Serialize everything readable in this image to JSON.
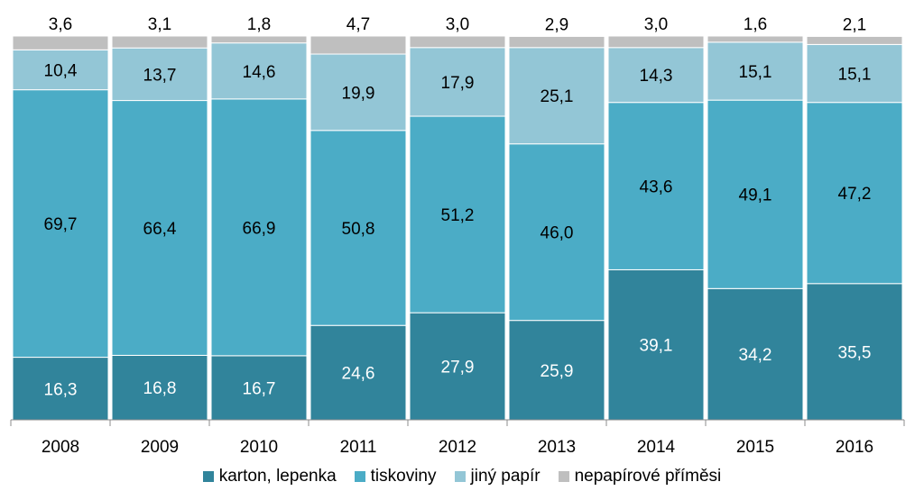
{
  "chart_data": {
    "type": "bar",
    "stacked": true,
    "percent": true,
    "categories": [
      "2008",
      "2009",
      "2010",
      "2011",
      "2012",
      "2013",
      "2014",
      "2015",
      "2016"
    ],
    "series": [
      {
        "name": "karton, lepenka",
        "color": "#31849b",
        "values": [
          16.3,
          16.8,
          16.7,
          24.6,
          27.9,
          25.9,
          39.1,
          34.2,
          35.5
        ],
        "labels": [
          "16,3",
          "16,8",
          "16,7",
          "24,6",
          "27,9",
          "25,9",
          "39,1",
          "34,2",
          "35,5"
        ]
      },
      {
        "name": "tiskoviny",
        "color": "#4bacc6",
        "values": [
          69.7,
          66.4,
          66.9,
          50.8,
          51.2,
          46.0,
          43.6,
          49.1,
          47.2
        ],
        "labels": [
          "69,7",
          "66,4",
          "66,9",
          "50,8",
          "51,2",
          "46,0",
          "43,6",
          "49,1",
          "47,2"
        ]
      },
      {
        "name": "jiný papír",
        "color": "#93c6d6",
        "values": [
          10.4,
          13.7,
          14.6,
          19.9,
          17.9,
          25.1,
          14.3,
          15.1,
          15.1
        ],
        "labels": [
          "10,4",
          "13,7",
          "14,6",
          "19,9",
          "17,9",
          "25,1",
          "14,3",
          "15,1",
          "15,1"
        ]
      },
      {
        "name": "nepapírové příměsi",
        "color": "#bfbfbf",
        "values": [
          3.6,
          3.1,
          1.8,
          4.7,
          3.0,
          2.9,
          3.0,
          1.6,
          2.1
        ],
        "labels": [
          "3,6",
          "3,1",
          "1,8",
          "4,7",
          "3,0",
          "2,9",
          "3,0",
          "1,6",
          "2,1"
        ]
      }
    ],
    "ylim": [
      0,
      100
    ],
    "grid": false,
    "legend_position": "bottom"
  }
}
